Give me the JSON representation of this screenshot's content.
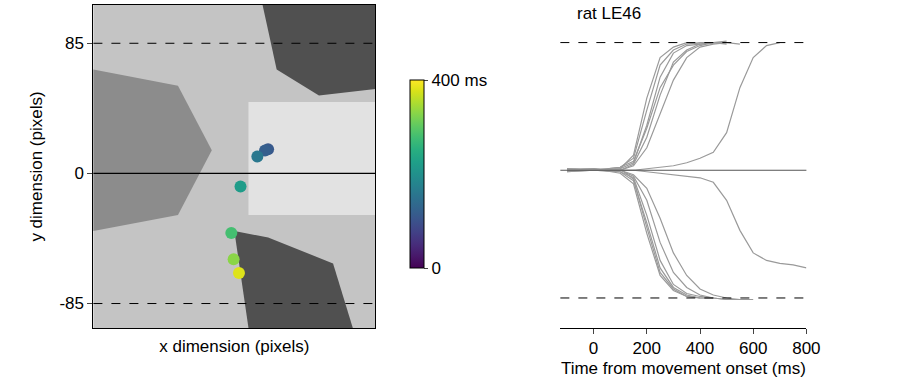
{
  "chart_data": [
    {
      "type": "scatter",
      "x_label": "x dimension (pixels)",
      "y_label": "y dimension (pixels)",
      "x": [
        114,
        112,
        107,
        96,
        90,
        91.5,
        95
      ],
      "y": [
        15.7,
        15,
        11,
        -8.5,
        -39,
        -56,
        -65
      ],
      "time_ms": [
        110,
        120,
        160,
        220,
        280,
        330,
        380
      ],
      "color": "viridis",
      "colorbar": {
        "range": [
          0,
          400
        ],
        "ticks": [
          {
            "value": 0,
            "label": "0"
          },
          {
            "value": 400,
            "label": "400 ms"
          }
        ]
      },
      "xlim": [
        0,
        184
      ],
      "ylim": [
        -101,
        110
      ],
      "yticks": [
        85,
        0,
        -85
      ],
      "tick_labels": "y",
      "reference_lines": [
        {
          "value": 85,
          "line_style": "dashed"
        },
        {
          "value": -85,
          "line_style": "dashed"
        },
        {
          "value": 0,
          "line_style": "solid"
        }
      ]
    },
    {
      "type": "line",
      "title": "rat LE46",
      "x_label": "Time from movement onset (ms)",
      "x": [
        -100,
        0,
        100,
        150,
        200,
        250,
        300,
        350,
        400,
        450,
        500,
        550,
        600,
        650,
        700,
        750,
        800
      ],
      "series": [
        {
          "values": [
            0,
            0,
            1,
            5,
            30,
            62,
            78,
            83,
            84,
            85,
            84,
            null,
            null,
            null,
            null,
            null,
            null
          ]
        },
        {
          "values": [
            1,
            0,
            2,
            8,
            40,
            70,
            80,
            84,
            85,
            85,
            null,
            null,
            null,
            null,
            null,
            null,
            null
          ]
        },
        {
          "values": [
            0,
            1,
            0,
            4,
            22,
            50,
            72,
            80,
            84,
            85,
            86,
            null,
            null,
            null,
            null,
            null,
            null
          ]
        },
        {
          "values": [
            -1,
            0,
            1,
            10,
            48,
            75,
            82,
            85,
            84,
            null,
            null,
            null,
            null,
            null,
            null,
            null,
            null
          ]
        },
        {
          "values": [
            0,
            0,
            2,
            6,
            28,
            55,
            70,
            79,
            83,
            85,
            85,
            84,
            null,
            null,
            null,
            null,
            null
          ]
        },
        {
          "values": [
            1,
            1,
            0,
            3,
            15,
            38,
            60,
            75,
            82,
            84,
            85,
            null,
            null,
            null,
            null,
            null,
            null
          ]
        },
        {
          "values": [
            0,
            0,
            0,
            0,
            1,
            2,
            3,
            5,
            8,
            12,
            25,
            55,
            75,
            83,
            85,
            null,
            null
          ]
        },
        {
          "values": [
            0,
            0,
            -1,
            -5,
            -30,
            -60,
            -76,
            -82,
            -84,
            -85,
            null,
            null,
            null,
            null,
            null,
            null,
            null
          ]
        },
        {
          "values": [
            0,
            1,
            -2,
            -9,
            -42,
            -70,
            -80,
            -84,
            -85,
            null,
            null,
            null,
            null,
            null,
            null,
            null,
            null
          ]
        },
        {
          "values": [
            1,
            0,
            0,
            -4,
            -20,
            -48,
            -68,
            -78,
            -83,
            -85,
            -86,
            null,
            null,
            null,
            null,
            null,
            null
          ]
        },
        {
          "values": [
            0,
            0,
            -1,
            -7,
            -35,
            -65,
            -78,
            -83,
            -85,
            -85,
            -86,
            -86,
            null,
            null,
            null,
            null,
            null
          ]
        },
        {
          "values": [
            -1,
            0,
            0,
            -3,
            -12,
            -32,
            -55,
            -70,
            -79,
            -83,
            -85,
            -86,
            -86,
            null,
            null,
            null,
            null
          ]
        },
        {
          "values": [
            0,
            0,
            1,
            -6,
            -38,
            -68,
            -79,
            -84,
            -85,
            -85,
            null,
            null,
            null,
            null,
            null,
            null,
            null
          ]
        },
        {
          "values": [
            0,
            0,
            0,
            0,
            -1,
            -2,
            -3,
            -4,
            -5,
            -8,
            -20,
            -40,
            -55,
            -60,
            -62,
            -63,
            -65
          ]
        }
      ],
      "color": "#9a9a9a",
      "xlim": [
        -125,
        800
      ],
      "xticks": [
        0,
        200,
        400,
        600,
        800
      ],
      "ylim": [
        -105,
        110
      ],
      "tick_labels": "x",
      "reference_lines": [
        {
          "value": 85,
          "line_style": "dashed"
        },
        {
          "value": -85,
          "line_style": "dashed"
        },
        {
          "value": 0,
          "line_style": "solid"
        }
      ]
    }
  ]
}
